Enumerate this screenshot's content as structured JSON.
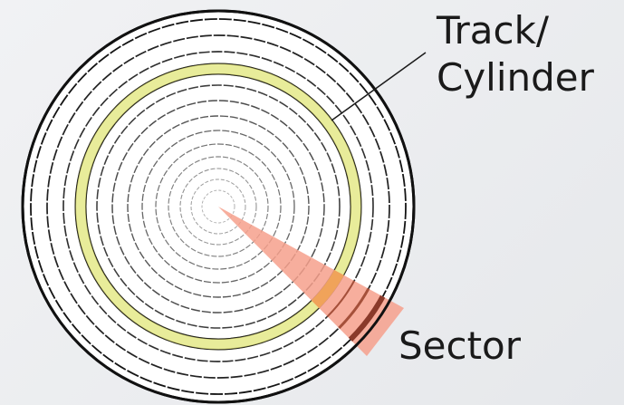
{
  "labels": {
    "track_line1": "Track/",
    "track_line2": "Cylinder",
    "sector": "Sector"
  },
  "colors": {
    "platter_fill": "#ffffff",
    "platter_edge": "#111111",
    "track_line": "#222222",
    "highlight_track": "#e8ec9a",
    "highlight_track_edge": "#b9b95a",
    "sector_wedge": "#f6a08c",
    "sector_track_overlap": "#f0a35a",
    "sector_edge": "#8a3a2a"
  }
}
